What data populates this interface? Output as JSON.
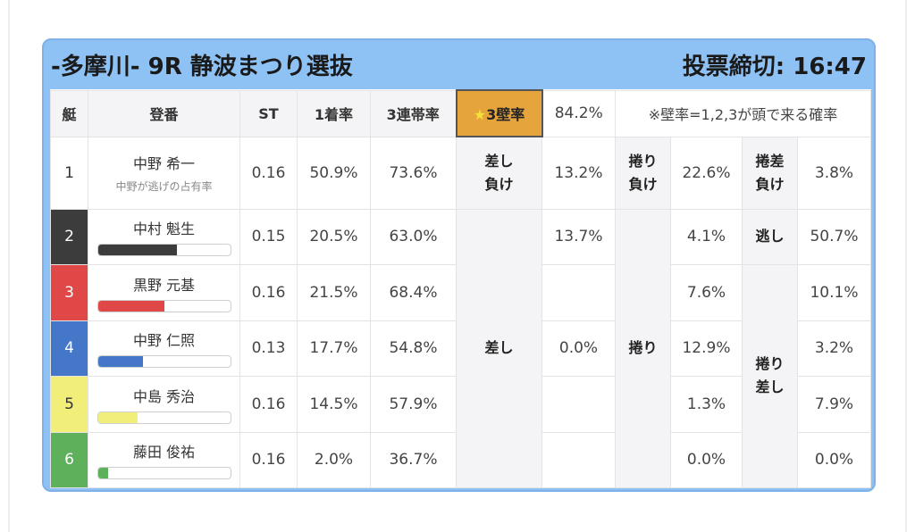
{
  "header": {
    "title": "-多摩川- 9R 静波まつり選抜",
    "deadline": "投票締切: 16:47"
  },
  "columns": {
    "frame": "艇",
    "racer": "登番",
    "st": "ST",
    "win": "1着率",
    "top3": "3連帯率",
    "wall_star": "★",
    "wall": "3壁率",
    "wall_pct": "84.2%",
    "wall_note": "※壁率=1,2,3が頭で来る確率"
  },
  "racers": [
    {
      "frame": "1",
      "name": "中野 希一",
      "note": "中野が逃げの占有率",
      "bar": null,
      "st": "0.16",
      "win": "50.9%",
      "top3": "73.6%",
      "sashi": "13.2%",
      "makuri": "22.6%",
      "makuri_sashi": "3.8%"
    },
    {
      "frame": "2",
      "name": "中村 魁生",
      "note": "",
      "bar": 0.6,
      "st": "0.15",
      "win": "20.5%",
      "top3": "63.0%",
      "sashi": "13.7%",
      "makuri": "4.1%",
      "makuri_sashi": "50.7%"
    },
    {
      "frame": "3",
      "name": "黒野 元基",
      "note": "",
      "bar": 0.5,
      "st": "0.16",
      "win": "21.5%",
      "top3": "68.4%",
      "sashi": "",
      "makuri": "7.6%",
      "makuri_sashi": "10.1%"
    },
    {
      "frame": "4",
      "name": "中野 仁照",
      "note": "",
      "bar": 0.34,
      "st": "0.13",
      "win": "17.7%",
      "top3": "54.8%",
      "sashi": "0.0%",
      "makuri": "12.9%",
      "makuri_sashi": "3.2%"
    },
    {
      "frame": "5",
      "name": "中島 秀治",
      "note": "",
      "bar": 0.3,
      "st": "0.16",
      "win": "14.5%",
      "top3": "57.9%",
      "sashi": "",
      "makuri": "1.3%",
      "makuri_sashi": "7.9%"
    },
    {
      "frame": "6",
      "name": "藤田 俊祐",
      "note": "",
      "bar": 0.08,
      "st": "0.16",
      "win": "2.0%",
      "top3": "36.7%",
      "sashi": "",
      "makuri": "0.0%",
      "makuri_sashi": "0.0%"
    }
  ],
  "labels": {
    "sashi_make": "差し負け",
    "makuri_make": "捲り負け",
    "makurisashi_make": "捲差負け",
    "sashi": "差し",
    "makuri": "捲り",
    "nige": "逃し",
    "makurisashi": "捲り差し"
  },
  "colors": {
    "frame2": "#3c3c3c",
    "frame3": "#e04848",
    "frame4": "#4477c8",
    "frame5": "#f2ee7a",
    "frame6": "#5fb05a",
    "accent": "#e6a43c",
    "card": "#8ec1f4"
  }
}
